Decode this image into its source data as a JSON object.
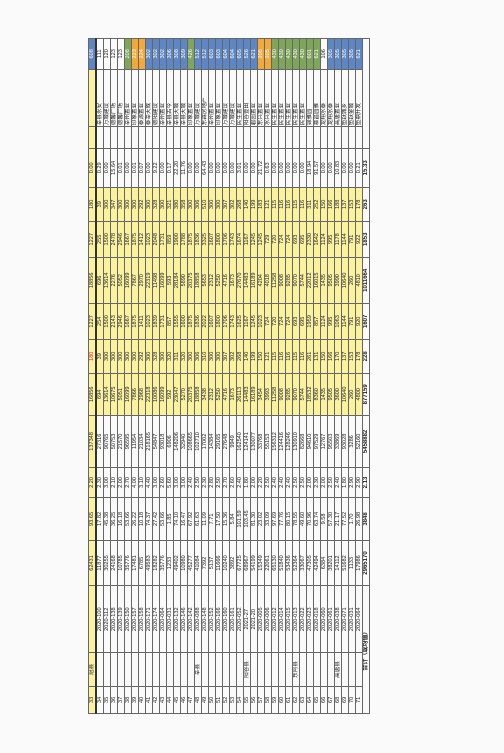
{
  "rows": [
    {
      "no": "33",
      "dist": "冠县",
      "code": "",
      "area": "62431",
      "a": "93.65",
      "b": "2.20",
      "c": "137348",
      "d": "16856",
      "e": "180",
      "f": "1227",
      "g": "18856",
      "h": "1227",
      "i": "180",
      "j": "0.00",
      "k": "",
      "name": "",
      "tag": "608",
      "highlight": "y",
      "tagc": "b"
    },
    {
      "no": "34",
      "dist": "",
      "code": "2020-100",
      "area": "11877",
      "a": "17.82",
      "b": "2.30",
      "c": "27316",
      "d": "694",
      "e": "39",
      "f": "254",
      "g": "696",
      "h": "255",
      "i": "39",
      "j": "0.29",
      "k": "",
      "name": "莘县永安",
      "tag": "111"
    },
    {
      "no": "35",
      "dist": "",
      "code": "2020-112",
      "area": "30255",
      "a": "45.38",
      "b": "3.00",
      "c": "90765",
      "d": "13614",
      "e": "300",
      "f": "1500",
      "g": "13614",
      "h": "1500",
      "i": "300",
      "j": "0.00",
      "k": "",
      "name": "万城建设",
      "tag": "120"
    },
    {
      "no": "36",
      "dist": "",
      "code": "2020-138",
      "area": "24168",
      "a": "36.25",
      "b": "2.10",
      "c": "50753",
      "d": "10675",
      "e": "300",
      "f": "2143",
      "g": "2276",
      "h": "2478",
      "i": "347",
      "j": "15.64",
      "k": "",
      "name": "德馨广场",
      "tag": "123"
    },
    {
      "no": "37",
      "dist": "",
      "code": "2020-139",
      "area": "10785",
      "a": "16.18",
      "b": "2.00",
      "c": "21570",
      "d": "5051",
      "e": "300",
      "f": "2946",
      "g": "5052",
      "h": "2946",
      "i": "300",
      "j": "0.01",
      "k": "",
      "name": "德馨广场",
      "tag": "123"
    },
    {
      "no": "38",
      "dist": "",
      "code": "2020-150",
      "area": "35776",
      "a": "53.66",
      "b": "2.70",
      "c": "96595",
      "d": "16099",
      "e": "300",
      "f": "1667",
      "g": "16099",
      "h": "1667",
      "i": "300",
      "j": "0.00",
      "k": "",
      "name": "莘州置业",
      "tag": "208",
      "tagc": "g"
    },
    {
      "no": "39",
      "dist": "",
      "code": "2020-157",
      "area": "17481",
      "a": "26.22",
      "b": "4.00",
      "c": "11954",
      "d": "7866",
      "e": "300",
      "f": "1875",
      "g": "7867",
      "h": "1875",
      "i": "300",
      "j": "0.01",
      "k": "",
      "name": "印象置业",
      "tag": "223",
      "tagc": "o"
    },
    {
      "no": "40",
      "dist": "",
      "code": "2020-158",
      "area": "6785",
      "a": "10.18",
      "b": "3.10",
      "c": "21034",
      "d": "2968",
      "e": "292",
      "f": "1411",
      "g": "2970",
      "h": "1412",
      "i": "292",
      "j": "0.07",
      "k": "",
      "name": "泰源置业",
      "tag": "224",
      "tagc": "o"
    },
    {
      "no": "41",
      "dist": "",
      "code": "2020-171",
      "area": "49583",
      "a": "74.37",
      "b": "4.40",
      "c": "218165",
      "d": "22318",
      "e": "300",
      "f": "1023",
      "g": "22319",
      "h": "1023",
      "i": "300",
      "j": "0.00",
      "k": "",
      "name": "泰莘天成",
      "tag": "302",
      "tagc": "b"
    },
    {
      "no": "42",
      "dist": "",
      "code": "2020-174",
      "area": "18282",
      "a": "27.42",
      "b": "3.00",
      "c": "54847",
      "d": "10086",
      "e": "328",
      "f": "1839",
      "g": "11498",
      "h": "2048",
      "i": "328",
      "j": "9.22",
      "k": "",
      "name": "德阳建设",
      "tag": "302",
      "tagc": "b"
    },
    {
      "no": "43",
      "dist": "",
      "code": "2020-064",
      "area": "35776",
      "a": "53.66",
      "b": "2.60",
      "c": "93018",
      "d": "16099",
      "e": "300",
      "f": "1731",
      "g": "16099",
      "h": "1731",
      "i": "300",
      "j": "0.00",
      "k": "",
      "name": "莘州置业",
      "tag": "302",
      "tagc": "b"
    },
    {
      "no": "44",
      "dist": "",
      "code": "2020-031",
      "area": "1233",
      "a": "1.85",
      "b": "5.60",
      "c": "6906",
      "d": "592",
      "e": "320",
      "f": "857",
      "g": "593",
      "h": "859",
      "i": "321",
      "j": "0.17",
      "k": "",
      "name": "莘县古今",
      "tag": "306",
      "tagc": "b"
    },
    {
      "no": "45",
      "dist": "",
      "code": "2020-132",
      "area": "49402",
      "a": "74.10",
      "b": "3.00",
      "c": "148206",
      "d": "23047",
      "e": "311",
      "f": "1555",
      "g": "28184",
      "h": "1900",
      "i": "380",
      "j": "22.20",
      "k": "",
      "name": "莘县天城",
      "tag": "308",
      "tagc": "b"
    },
    {
      "no": "46",
      "dist": "",
      "code": "2020-146",
      "area": "10980",
      "a": "16.47",
      "b": "3.00",
      "c": "32940",
      "d": "5270",
      "e": "320",
      "f": "1600",
      "g": "5890",
      "h": "1788",
      "i": "358",
      "j": "11.76",
      "k": "",
      "name": "莘县天城",
      "tag": "309",
      "tagc": "b"
    },
    {
      "no": "47",
      "dist": "",
      "code": "2020-142",
      "area": "45277",
      "a": "67.92",
      "b": "2.40",
      "c": "108665",
      "d": "20375",
      "e": "300",
      "f": "1875",
      "g": "20375",
      "h": "1875",
      "i": "300",
      "j": "0.00",
      "k": "",
      "name": "印象置业",
      "tag": "426",
      "tagc": "g"
    },
    {
      "no": "48",
      "dist": "莘县",
      "code": "2020-088",
      "area": "41084",
      "a": "61.63",
      "b": "2.50",
      "c": "102710",
      "d": "18858",
      "e": "306",
      "f": "1836",
      "g": "18858",
      "h": "1836",
      "i": "306",
      "j": "0.00",
      "k": "",
      "name": "万城建设",
      "tag": "512",
      "tagc": "b"
    },
    {
      "no": "49",
      "dist": "",
      "code": "2020-148",
      "area": "7392",
      "a": "11.09",
      "b": "2.30",
      "c": "17002",
      "d": "3438",
      "e": "310",
      "f": "2022",
      "g": "5653",
      "h": "3325",
      "i": "510",
      "j": "64.43",
      "k": "",
      "name": "东霖房地产",
      "tag": "512",
      "tagc": "b"
    },
    {
      "no": "50",
      "dist": "",
      "code": "2020-152",
      "area": "5137",
      "a": "7.71",
      "b": "2.80",
      "c": "14384",
      "d": "2312",
      "e": "300",
      "f": "1607",
      "g": "2312",
      "h": "1607",
      "i": "300",
      "j": "0.00",
      "k": "",
      "name": "莘州置业",
      "tag": "603",
      "tagc": "b"
    },
    {
      "no": "51",
      "dist": "",
      "code": "2020-166",
      "area": "11666",
      "a": "17.50",
      "b": "2.50",
      "c": "29165",
      "d": "5250",
      "e": "300",
      "f": "1800",
      "g": "5250",
      "h": "1800",
      "i": "300",
      "j": "0.00",
      "k": "",
      "name": "印象置业",
      "tag": "603",
      "tagc": "b"
    },
    {
      "no": "52",
      "dist": "",
      "code": "2020-160",
      "area": "10240",
      "a": "15.36",
      "b": "2.70",
      "c": "27648",
      "d": "4716",
      "e": "307",
      "f": "1706",
      "g": "4716",
      "h": "1706",
      "i": "307",
      "j": "0.00",
      "k": "",
      "name": "万城建设",
      "tag": "604",
      "tagc": "b"
    },
    {
      "no": "53",
      "dist": "",
      "code": "2020-161",
      "area": "3892",
      "a": "5.84",
      "b": "2.60",
      "a2": "",
      "c": "9949",
      "d": "1673",
      "e": "302",
      "f": "1743",
      "g": "1673",
      "h": "1743",
      "i": "302",
      "j": "0.00",
      "k": "",
      "name": "万城建设",
      "tag": "604",
      "tagc": "b"
    },
    {
      "no": "54",
      "dist": "",
      "code": "2020-052",
      "area": "67725",
      "a": "101.59",
      "b": "2.40",
      "c": "162540",
      "d": "26113",
      "e": "268",
      "f": "1625",
      "g": "27670",
      "h": "1674",
      "i": "268",
      "j": "3.01",
      "k": "",
      "name": "民生置业",
      "tag": "605",
      "tagc": "b"
    },
    {
      "no": "55",
      "dist": "阳谷县",
      "code": "2021-27",
      "area": "68967",
      "a": "103.45",
      "b": "1.80",
      "c": "124141",
      "d": "14483",
      "e": "140",
      "f": "1167",
      "g": "14483",
      "h": "1167",
      "i": "140",
      "j": "0.00",
      "k": "",
      "name": "阳谷壹田",
      "tag": "526",
      "tagc": "b"
    },
    {
      "no": "56",
      "dist": "",
      "code": "2021-20",
      "area": "54199",
      "a": "81.30",
      "b": "2.00",
      "c": "130077",
      "d": "16189",
      "e": "199",
      "f": "1245",
      "g": "16189",
      "h": "1245",
      "i": "199",
      "j": "0.00",
      "k": "",
      "name": "碧园置业",
      "tag": "621",
      "tagc": "b"
    },
    {
      "no": "57",
      "dist": "",
      "code": "2020-005",
      "area": "15349",
      "a": "23.02",
      "b": "2.20",
      "c": "33768",
      "d": "3454",
      "e": "150",
      "f": "1023",
      "g": "4204",
      "h": "1245",
      "i": "183",
      "j": "21.72",
      "k": "",
      "name": "东兴置业",
      "tag": "205",
      "tagc": "o"
    },
    {
      "no": "58",
      "dist": "",
      "code": "2020-006",
      "area": "22061",
      "a": "33.09",
      "b": "2.50",
      "c": "55153",
      "d": "3993",
      "e": "121",
      "f": "724",
      "g": "4018",
      "h": "729",
      "i": "121",
      "j": "0.63",
      "k": "",
      "name": "水兴置业",
      "tag": "205",
      "tagc": "o"
    },
    {
      "no": "59",
      "dist": "",
      "code": "2020-012",
      "area": "65130",
      "a": "97.69",
      "b": "2.40",
      "c": "156312",
      "d": "11258",
      "e": "115",
      "f": "720",
      "g": "11258",
      "h": "720",
      "i": "115",
      "j": "0.00",
      "k": "",
      "name": "民生置业",
      "tag": "430",
      "tagc": "g"
    },
    {
      "no": "60",
      "dist": "",
      "code": "2020-014",
      "area": "51840",
      "a": "77.76",
      "b": "2.40",
      "c": "124416",
      "d": "9008",
      "e": "116",
      "f": "724",
      "g": "9008",
      "h": "724",
      "i": "116",
      "j": "0.00",
      "k": "",
      "name": "民生置业",
      "tag": "430",
      "tagc": "g"
    },
    {
      "no": "61",
      "dist": "",
      "code": "2020-015",
      "area": "53436",
      "a": "80.15",
      "b": "2.40",
      "c": "128246",
      "d": "9285",
      "e": "116",
      "f": "724",
      "g": "9285",
      "h": "724",
      "i": "116",
      "j": "0.00",
      "k": "",
      "name": "民生置业",
      "tag": "430",
      "tagc": "g"
    },
    {
      "no": "62",
      "dist": "东阿县",
      "code": "2020-013",
      "area": "52364",
      "a": "78.55",
      "b": "2.50",
      "c": "130910",
      "d": "9070",
      "e": "115",
      "f": "693",
      "g": "9070",
      "h": "693",
      "i": "115",
      "j": "0.00",
      "k": "",
      "name": "民生置业",
      "tag": "430",
      "tagc": "g"
    },
    {
      "no": "63",
      "dist": "",
      "code": "2020-022",
      "area": "33067",
      "a": "49.60",
      "b": "2.50",
      "c": "82668",
      "d": "5744",
      "e": "116",
      "f": "695",
      "g": "5744",
      "h": "695",
      "i": "116",
      "j": "0.00",
      "k": "",
      "name": "民生置业",
      "tag": "430",
      "tagc": "g"
    },
    {
      "no": "64",
      "dist": "",
      "code": "2020-023",
      "area": "47305",
      "a": "70.96",
      "b": "2.00",
      "c": "94610",
      "d": "18532",
      "e": "261",
      "f": "1959",
      "g": "22012",
      "h": "2330",
      "i": "311",
      "j": "18.94",
      "k": "",
      "name": "锦雅园",
      "tag": "601",
      "tagc": "g"
    },
    {
      "no": "65",
      "dist": "",
      "code": "2020-018",
      "area": "42494",
      "a": "63.74",
      "b": "2.30",
      "c": "97529",
      "d": "8360",
      "e": "131",
      "f": "857",
      "g": "16015",
      "h": "1642",
      "i": "252",
      "j": "91.57",
      "k": "",
      "name": "慕昌园雅",
      "tag": "621",
      "tagc": "g"
    },
    {
      "no": "66",
      "dist": "",
      "code": "2020-060",
      "area": "6384",
      "a": "9.58",
      "b": "2.00",
      "c": "12767",
      "d": "1435",
      "e": "150",
      "f": "1124",
      "g": "1435",
      "h": "1124",
      "i": "150",
      "j": "0.00",
      "k": "",
      "name": "龙翔水泰",
      "tag": "106"
    },
    {
      "no": "67",
      "dist": "",
      "code": "2020-061",
      "area": "38201",
      "a": "57.30",
      "b": "2.50",
      "c": "95503",
      "d": "9505",
      "e": "166",
      "f": "995",
      "g": "9505",
      "h": "995",
      "i": "166",
      "j": "0.00",
      "k": "",
      "name": "龙翔水泰",
      "tag": "305",
      "tagc": "b"
    },
    {
      "no": "68",
      "dist": "高唐县",
      "code": "2020-038",
      "area": "14112",
      "a": "21.17",
      "b": "2.40",
      "c": "33869",
      "d": "3600",
      "e": "170",
      "f": "1063",
      "g": "3990",
      "h": "1178",
      "i": "188",
      "j": "10.83",
      "k": "",
      "name": "高唐置业",
      "tag": "305",
      "tagc": "b"
    },
    {
      "no": "69",
      "dist": "",
      "code": "2020-071",
      "area": "51682",
      "a": "77.52",
      "b": "1.80",
      "c": "93028",
      "d": "10640",
      "e": "137",
      "f": "1144",
      "g": "10640",
      "h": "1144",
      "i": "137",
      "j": "0.00",
      "k": "",
      "name": "鱼跃城乡",
      "tag": "305",
      "tagc": "b"
    },
    {
      "no": "70",
      "dist": "",
      "code": "2020-031",
      "area": "1133",
      "a": "1.70",
      "b": "2.90",
      "c": "3286",
      "d": "260",
      "e": "153",
      "f": "791",
      "g": "260",
      "h": "791",
      "i": "153",
      "j": "0.00",
      "k": "",
      "name": "鱼跃金城",
      "tag": "305",
      "tagc": "b"
    },
    {
      "no": "71",
      "dist": "",
      "code": "2020-064",
      "area": "17986",
      "a": "26.98",
      "b": "2.90",
      "c": "52160",
      "d": "4800",
      "e": "178",
      "f": "920",
      "g": "4810",
      "h": "922",
      "i": "178",
      "j": "0.21",
      "k": "",
      "name": "鱼鼎升发",
      "tag": "621",
      "tagc": "b"
    }
  ],
  "total": {
    "label": "合计（或均值）",
    "area": "2965170",
    "a": "3848",
    "b": "2.13",
    "c": "5458882",
    "d": "877159",
    "e": "228",
    "f": "1607",
    "g": "1011664",
    "h": "1853",
    "i": "263",
    "j": "15.33"
  }
}
